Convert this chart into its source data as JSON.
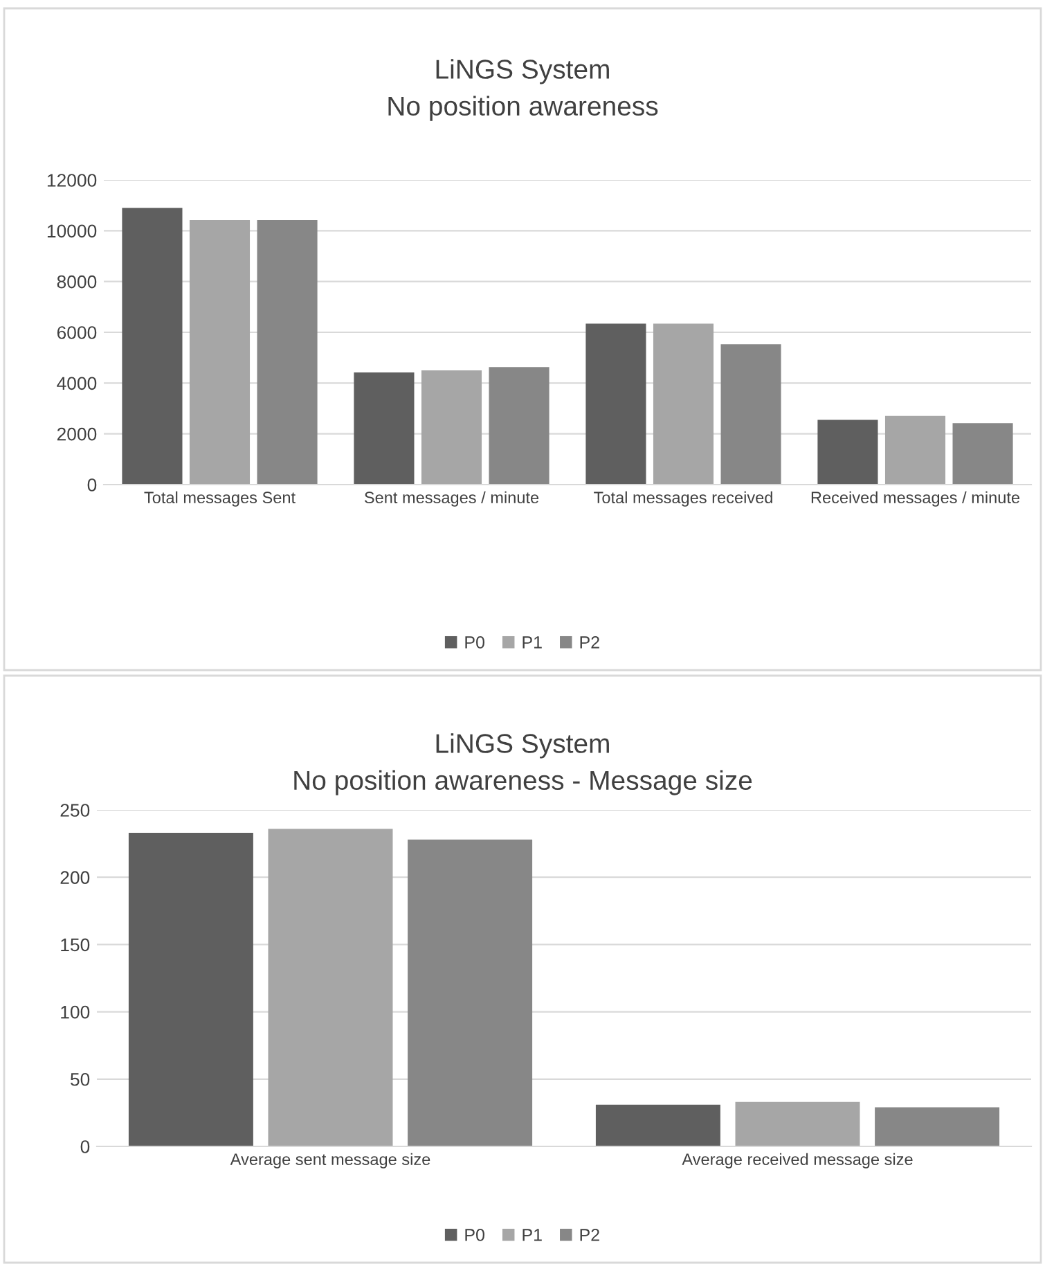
{
  "chart_data": [
    {
      "type": "bar",
      "title": "LiNGS System\nNo position awareness",
      "categories": [
        "Total messages Sent",
        "Sent messages / minute",
        "Total messages received",
        "Received messages / minute"
      ],
      "series": [
        {
          "name": "P0",
          "color": "#5f5f5f",
          "values": [
            10900,
            4420,
            6340,
            2550
          ]
        },
        {
          "name": "P1",
          "color": "#a6a6a6",
          "values": [
            10420,
            4500,
            6340,
            2710
          ]
        },
        {
          "name": "P2",
          "color": "#878787",
          "values": [
            10420,
            4630,
            5530,
            2420
          ]
        }
      ],
      "ylim": [
        0,
        12000
      ],
      "yticks": [
        0,
        2000,
        4000,
        6000,
        8000,
        10000,
        12000
      ],
      "grid": "y",
      "legend": "bottom"
    },
    {
      "type": "bar",
      "title": "LiNGS System\nNo position awareness - Message size",
      "categories": [
        "Average sent message size",
        "Average received message size"
      ],
      "series": [
        {
          "name": "P0",
          "color": "#5f5f5f",
          "values": [
            233,
            31
          ]
        },
        {
          "name": "P1",
          "color": "#a6a6a6",
          "values": [
            236,
            33
          ]
        },
        {
          "name": "P2",
          "color": "#878787",
          "values": [
            228,
            29
          ]
        }
      ],
      "ylim": [
        0,
        250
      ],
      "yticks": [
        0,
        50,
        100,
        150,
        200,
        250
      ],
      "grid": "y",
      "legend": "bottom"
    }
  ]
}
